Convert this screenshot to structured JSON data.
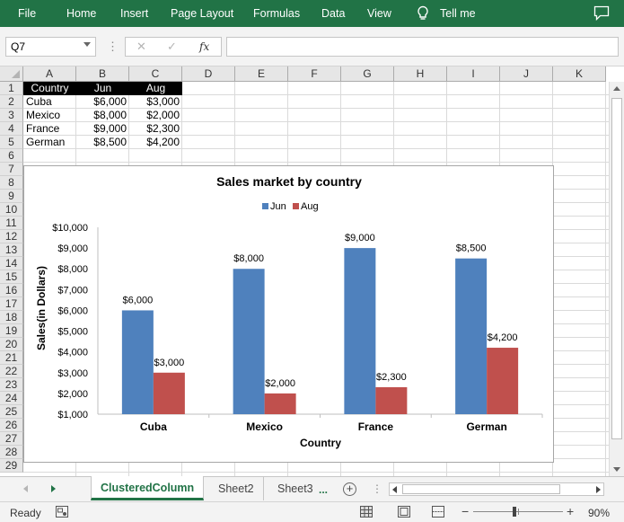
{
  "ribbon": {
    "menu": [
      "File",
      "Home",
      "Insert",
      "Page Layout",
      "Formulas",
      "Data",
      "View"
    ],
    "tell_me": "Tell me",
    "color": "#217346"
  },
  "formula_bar": {
    "name_box": "Q7",
    "cancel_icon": "x-icon",
    "enter_icon": "check-icon",
    "fx_label": "fx",
    "formula": ""
  },
  "grid": {
    "columns": [
      "A",
      "B",
      "C",
      "D",
      "E",
      "F",
      "G",
      "H",
      "I",
      "J",
      "K"
    ],
    "rows": [
      "1",
      "2",
      "3",
      "4",
      "5",
      "6",
      "7",
      "8",
      "9",
      "10",
      "11",
      "12",
      "13",
      "14",
      "15",
      "16",
      "17",
      "18",
      "19",
      "20",
      "21",
      "22",
      "23",
      "24",
      "25",
      "26",
      "27",
      "28",
      "29"
    ],
    "data": [
      [
        "Country",
        "Jun",
        "Aug"
      ],
      [
        "Cuba",
        "$6,000",
        "$3,000"
      ],
      [
        "Mexico",
        "$8,000",
        "$2,000"
      ],
      [
        "France",
        "$9,000",
        "$2,300"
      ],
      [
        "German",
        "$8,500",
        "$4,200"
      ]
    ]
  },
  "chart_data": {
    "type": "bar",
    "title": "Sales market by country",
    "xlabel": "Country",
    "ylabel": "Sales(in Dollars)",
    "categories": [
      "Cuba",
      "Mexico",
      "France",
      "German"
    ],
    "series": [
      {
        "name": "Jun",
        "values": [
          6000,
          8000,
          9000,
          8500
        ],
        "color": "#4f81bd"
      },
      {
        "name": "Aug",
        "values": [
          3000,
          2000,
          2300,
          4200
        ],
        "color": "#c0504d"
      }
    ],
    "data_labels": [
      [
        "$6,000",
        "$8,000",
        "$9,000",
        "$8,500"
      ],
      [
        "$3,000",
        "$2,000",
        "$2,300",
        "$4,200"
      ]
    ],
    "ylim": [
      1000,
      10000
    ],
    "yticks": [
      "$1,000",
      "$2,000",
      "$3,000",
      "$4,000",
      "$5,000",
      "$6,000",
      "$7,000",
      "$8,000",
      "$9,000",
      "$10,000"
    ],
    "ytick_values": [
      1000,
      2000,
      3000,
      4000,
      5000,
      6000,
      7000,
      8000,
      9000,
      10000
    ],
    "legend_position": "top",
    "grid": false
  },
  "tabs": {
    "sheets": [
      "ClusteredColumn",
      "Sheet2",
      "Sheet3"
    ],
    "active": "ClusteredColumn",
    "ellipsis": "...",
    "add_icon": "+"
  },
  "status": {
    "ready": "Ready",
    "zoom_level": "90%",
    "zoom_minus": "−",
    "zoom_plus": "+"
  }
}
